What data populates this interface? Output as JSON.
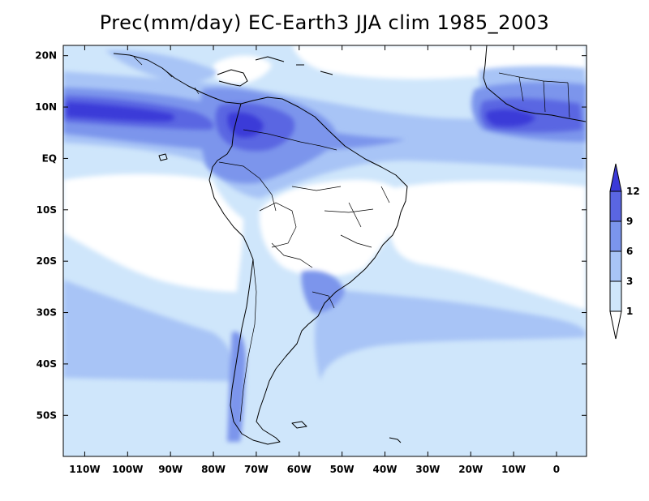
{
  "title": "Prec(mm/day) EC-Earth3 JJA clim 1985_2003",
  "map": {
    "projection": "equirectangular",
    "lon_range": [
      -115,
      7
    ],
    "lat_range": [
      -58,
      22
    ],
    "variable": "precipitation",
    "units": "mm/day",
    "season": "JJA",
    "years": "1985_2003",
    "model": "EC-Earth3"
  },
  "axes": {
    "lon_ticks": [
      {
        "label": "110W",
        "value": -110
      },
      {
        "label": "100W",
        "value": -100
      },
      {
        "label": "90W",
        "value": -90
      },
      {
        "label": "80W",
        "value": -80
      },
      {
        "label": "70W",
        "value": -70
      },
      {
        "label": "60W",
        "value": -60
      },
      {
        "label": "50W",
        "value": -50
      },
      {
        "label": "40W",
        "value": -40
      },
      {
        "label": "30W",
        "value": -30
      },
      {
        "label": "20W",
        "value": -20
      },
      {
        "label": "10W",
        "value": -10
      },
      {
        "label": "0",
        "value": 0
      }
    ],
    "lat_ticks": [
      {
        "label": "20N",
        "value": 20
      },
      {
        "label": "10N",
        "value": 10
      },
      {
        "label": "EQ",
        "value": 0
      },
      {
        "label": "10S",
        "value": -10
      },
      {
        "label": "20S",
        "value": -20
      },
      {
        "label": "30S",
        "value": -30
      },
      {
        "label": "40S",
        "value": -40
      },
      {
        "label": "50S",
        "value": -50
      }
    ]
  },
  "colorbar": {
    "levels": [
      {
        "label": "1",
        "value": 1
      },
      {
        "label": "3",
        "value": 3
      },
      {
        "label": "6",
        "value": 6
      },
      {
        "label": "9",
        "value": 9
      },
      {
        "label": "12",
        "value": 12
      }
    ],
    "colors": [
      "#ffffff",
      "#cfe6fb",
      "#a8c4f6",
      "#7b95ec",
      "#5a66e2",
      "#3b3ad8"
    ]
  }
}
